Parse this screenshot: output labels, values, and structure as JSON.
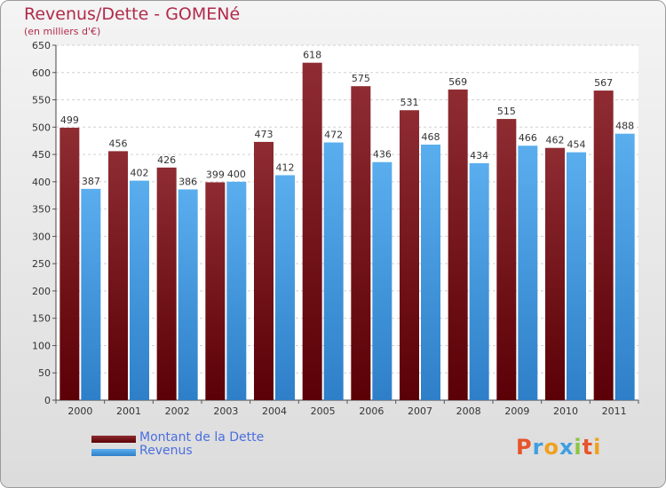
{
  "header": {
    "title": "Revenus/Dette - GOMENé",
    "subtitle": "(en milliers d'€)"
  },
  "legend": {
    "items": [
      {
        "label": "Montant de la Dette",
        "color": "#7a0e12"
      },
      {
        "label": "Revenus",
        "color": "#4aa3e8"
      }
    ]
  },
  "logo": {
    "letters": [
      "P",
      "r",
      "o",
      "x",
      "i",
      "t",
      "i"
    ],
    "colors": [
      "#e8542b",
      "#3f9fe0",
      "#f0a020",
      "#3f9fe0",
      "#8cc63f",
      "#e8542b",
      "#f0a020"
    ]
  },
  "chart_data": {
    "type": "bar",
    "categories": [
      "2000",
      "2001",
      "2002",
      "2003",
      "2004",
      "2005",
      "2006",
      "2007",
      "2008",
      "2009",
      "2010",
      "2011"
    ],
    "series": [
      {
        "name": "Montant de la Dette",
        "values": [
          499,
          456,
          426,
          399,
          473,
          618,
          575,
          531,
          569,
          515,
          462,
          567
        ]
      },
      {
        "name": "Revenus",
        "values": [
          387,
          402,
          386,
          400,
          412,
          472,
          436,
          468,
          434,
          466,
          454,
          488
        ]
      }
    ],
    "ylim": [
      0,
      650
    ],
    "yticks": [
      0,
      50,
      100,
      150,
      200,
      250,
      300,
      350,
      400,
      450,
      500,
      550,
      600,
      650
    ],
    "grid": true,
    "legend_position": "bottom-left",
    "data_labels": true
  }
}
